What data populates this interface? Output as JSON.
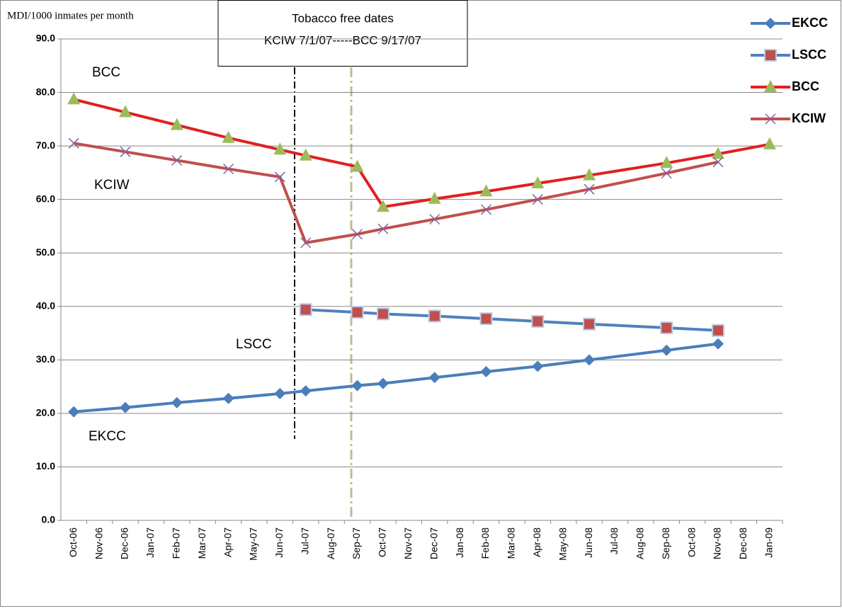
{
  "chart_data": {
    "type": "line",
    "y_label": "MDI/1000 inmates per month",
    "annotation_box": [
      "Tobacco free dates",
      "KCIW 7/1/07-----BCC 9/17/07"
    ],
    "series_labels": [
      "BCC",
      "KCIW",
      "LSCC",
      "EKCC"
    ],
    "categories": [
      "Oct-06",
      "Nov-06",
      "Dec-06",
      "Jan-07",
      "Feb-07",
      "Mar-07",
      "Apr-07",
      "May-07",
      "Jun-07",
      "Jul-07",
      "Aug-07",
      "Sep-07",
      "Oct-07",
      "Nov-07",
      "Dec-07",
      "Jan-08",
      "Feb-08",
      "Mar-08",
      "Apr-08",
      "May-08",
      "Jun-08",
      "Jul-08",
      "Aug-08",
      "Sep-08",
      "Oct-08",
      "Nov-08",
      "Dec-08",
      "Jan-09"
    ],
    "series": [
      {
        "name": "EKCC",
        "color": "#4a7ebb",
        "marker_color": "#4a7ebb",
        "marker": "diamond",
        "x": [
          "Oct-06",
          "Dec-06",
          "Feb-07",
          "Apr-07",
          "Jun-07",
          "Jul-07",
          "Sep-07",
          "Oct-07",
          "Dec-07",
          "Feb-08",
          "Apr-08",
          "Jun-08",
          "Sep-08",
          "Nov-08"
        ],
        "values": [
          20.3,
          21.1,
          22.0,
          22.8,
          23.7,
          24.2,
          25.2,
          25.6,
          26.7,
          27.8,
          28.8,
          30.0,
          31.8,
          33.0
        ]
      },
      {
        "name": "LSCC",
        "color": "#4f81bd",
        "marker_color": "#c0504d",
        "marker": "square",
        "x": [
          "Jul-07",
          "Sep-07",
          "Oct-07",
          "Dec-07",
          "Feb-08",
          "Apr-08",
          "Jun-08",
          "Sep-08",
          "Nov-08"
        ],
        "values": [
          39.4,
          38.9,
          38.6,
          38.2,
          37.7,
          37.2,
          36.7,
          36.0,
          35.5
        ]
      },
      {
        "name": "BCC",
        "color": "#e0201f",
        "marker_color": "#9bbb59",
        "marker": "triangle",
        "x": [
          "Oct-06",
          "Dec-06",
          "Feb-07",
          "Apr-07",
          "Jun-07",
          "Jul-07",
          "Sep-07",
          "Oct-07",
          "Dec-07",
          "Feb-08",
          "Apr-08",
          "Jun-08",
          "Sep-08",
          "Nov-08",
          "Jan-09"
        ],
        "values": [
          78.7,
          76.3,
          73.9,
          71.5,
          69.3,
          68.2,
          66.1,
          58.6,
          60.1,
          61.5,
          63.0,
          64.5,
          66.8,
          68.5,
          70.3
        ]
      },
      {
        "name": "KCIW",
        "color": "#c0504d",
        "marker_color": "#8064a2",
        "marker": "x",
        "x": [
          "Oct-06",
          "Dec-06",
          "Feb-07",
          "Apr-07",
          "Jun-07",
          "Jul-07",
          "Sep-07",
          "Oct-07",
          "Dec-07",
          "Feb-08",
          "Apr-08",
          "Jun-08",
          "Sep-08",
          "Nov-08"
        ],
        "values": [
          70.5,
          68.9,
          67.3,
          65.7,
          64.2,
          51.9,
          53.5,
          54.5,
          56.3,
          58.1,
          60.0,
          61.9,
          64.9,
          67.0
        ]
      }
    ],
    "ylim": [
      0,
      90
    ],
    "yticks": [
      {
        "value": 0,
        "label": "0.0"
      },
      {
        "value": 10,
        "label": "10.0"
      },
      {
        "value": 20,
        "label": "20.0"
      },
      {
        "value": 30,
        "label": "30.0"
      },
      {
        "value": 40,
        "label": "40.0"
      },
      {
        "value": 50,
        "label": "50.0"
      },
      {
        "value": 60,
        "label": "60.0"
      },
      {
        "value": 70,
        "label": "70.0"
      },
      {
        "value": 80,
        "label": "80.0"
      },
      {
        "value": 90,
        "label": "90.0"
      }
    ],
    "grid": true,
    "legend": "right"
  }
}
